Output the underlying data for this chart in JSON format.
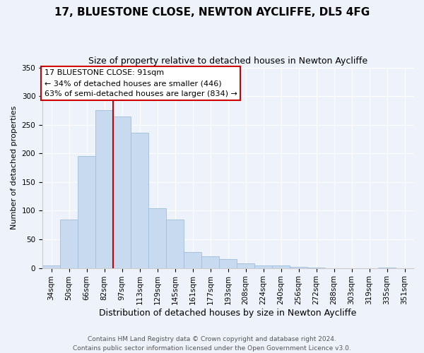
{
  "title": "17, BLUESTONE CLOSE, NEWTON AYCLIFFE, DL5 4FG",
  "subtitle": "Size of property relative to detached houses in Newton Aycliffe",
  "xlabel": "Distribution of detached houses by size in Newton Aycliffe",
  "ylabel": "Number of detached properties",
  "bar_labels": [
    "34sqm",
    "50sqm",
    "66sqm",
    "82sqm",
    "97sqm",
    "113sqm",
    "129sqm",
    "145sqm",
    "161sqm",
    "177sqm",
    "193sqm",
    "208sqm",
    "224sqm",
    "240sqm",
    "256sqm",
    "272sqm",
    "288sqm",
    "303sqm",
    "319sqm",
    "335sqm",
    "351sqm"
  ],
  "bar_values": [
    5,
    84,
    196,
    276,
    265,
    236,
    104,
    84,
    28,
    20,
    16,
    8,
    5,
    4,
    2,
    1,
    0,
    0,
    0,
    1,
    0
  ],
  "bar_color": "#c8daf0",
  "bar_edge_color": "#a0bedd",
  "vline_x_index": 4,
  "vline_color": "#cc0000",
  "annotation_line1": "17 BLUESTONE CLOSE: 91sqm",
  "annotation_line2": "← 34% of detached houses are smaller (446)",
  "annotation_line3": "63% of semi-detached houses are larger (834) →",
  "annotation_box_color": "#ffffff",
  "annotation_box_edge": "#cc0000",
  "footer_text": "Contains HM Land Registry data © Crown copyright and database right 2024.\nContains public sector information licensed under the Open Government Licence v3.0.",
  "ylim": [
    0,
    350
  ],
  "yticks": [
    0,
    50,
    100,
    150,
    200,
    250,
    300,
    350
  ],
  "background_color": "#eef2fa",
  "grid_color": "#ffffff",
  "title_fontsize": 11,
  "subtitle_fontsize": 9,
  "ylabel_fontsize": 8,
  "xlabel_fontsize": 9,
  "tick_fontsize": 7.5,
  "annotation_fontsize": 8,
  "footer_fontsize": 6.5
}
